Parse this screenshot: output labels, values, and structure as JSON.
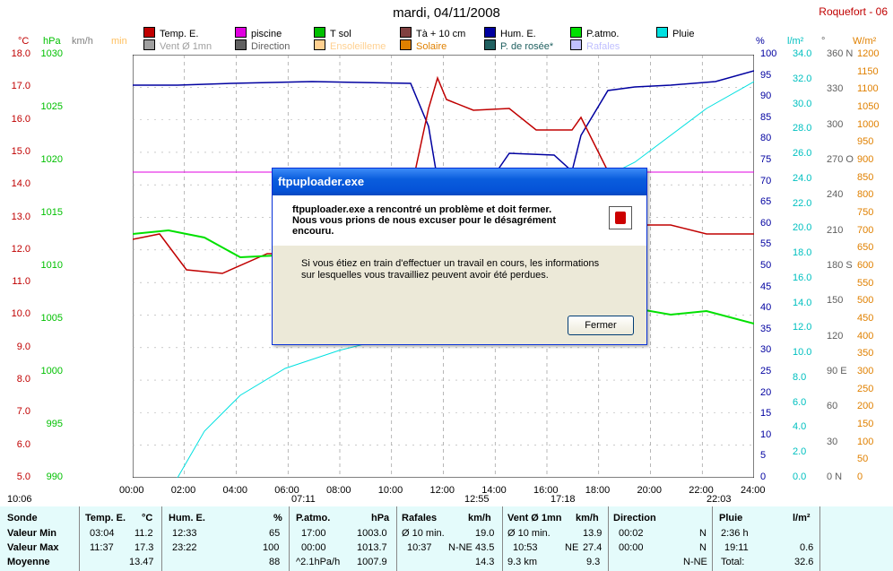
{
  "title": "mardi, 04/11/2008",
  "station": "Roquefort - 06",
  "legend": [
    {
      "label": "Temp. E.",
      "color": "#c00000"
    },
    {
      "label": "piscine",
      "color": "#e000e0"
    },
    {
      "label": "T sol",
      "color": "#00c000"
    },
    {
      "label": "Tà + 10 cm",
      "color": "#804040"
    },
    {
      "label": "Hum. E.",
      "color": "#0000a0"
    },
    {
      "label": "P.atmo.",
      "color": "#00e000"
    },
    {
      "label": "Pluie",
      "color": "#00e0e0"
    },
    {
      "label": "Vent Ø 1mn",
      "color": "#a0a0a0"
    },
    {
      "label": "Direction",
      "color": "#606060"
    },
    {
      "label": "Ensoleilleme",
      "color": "#ffd090"
    },
    {
      "label": "Solaire",
      "color": "#e08000"
    },
    {
      "label": "P. de rosée*",
      "color": "#206060"
    },
    {
      "label": "Rafales",
      "color": "#c0c0ff"
    }
  ],
  "units": {
    "c": "°C",
    "hpa": "hPa",
    "kmh": "km/h",
    "min": "min",
    "pct": "%",
    "lm2": "l/m²",
    "deg": "°",
    "wm2": "W/m²"
  },
  "axis_temp": [
    "18.0",
    "17.0",
    "16.0",
    "15.0",
    "14.0",
    "13.0",
    "12.0",
    "11.0",
    "10.0",
    "9.0",
    "8.0",
    "7.0",
    "6.0",
    "5.0"
  ],
  "axis_hpa": [
    "1030",
    "1025",
    "1020",
    "1015",
    "1010",
    "1005",
    "1000",
    "995",
    "990"
  ],
  "axis_hum": [
    "100",
    "95",
    "90",
    "85",
    "80",
    "75",
    "70",
    "65",
    "60",
    "55",
    "50",
    "45",
    "40",
    "35",
    "30",
    "25",
    "20",
    "15",
    "10",
    "5",
    "0"
  ],
  "axis_rain": [
    "34.0",
    "32.0",
    "30.0",
    "28.0",
    "26.0",
    "24.0",
    "22.0",
    "20.0",
    "18.0",
    "16.0",
    "14.0",
    "12.0",
    "10.0",
    "8.0",
    "6.0",
    "4.0",
    "2.0",
    "0.0"
  ],
  "axis_dir": [
    "360 N",
    "330",
    "300",
    "270 O",
    "240",
    "210",
    "180 S",
    "150",
    "120",
    "90 E",
    "60",
    "30",
    "0 N"
  ],
  "axis_sol": [
    "1200",
    "1150",
    "1100",
    "1050",
    "1000",
    "950",
    "900",
    "850",
    "800",
    "750",
    "700",
    "650",
    "600",
    "550",
    "500",
    "450",
    "400",
    "350",
    "300",
    "250",
    "200",
    "150",
    "100",
    "50",
    "0"
  ],
  "x_ticks": [
    "00:00",
    "02:00",
    "04:00",
    "06:00",
    "08:00",
    "10:00",
    "12:00",
    "14:00",
    "16:00",
    "18:00",
    "20:00",
    "22:00",
    "24:00"
  ],
  "sun": {
    "day_start": "10:06",
    "sunrise": "07:11",
    "noon": "12:55",
    "sunset": "17:18",
    "end": "22:03"
  },
  "dialog": {
    "title": "ftpuploader.exe",
    "heading": "ftpuploader.exe a rencontré un problème et doit fermer. Nous vous prions de nous excuser pour le désagrément encouru.",
    "message": "Si vous étiez en train d'effectuer un travail en cours, les informations sur lesquelles vous travailliez peuvent avoir été perdues.",
    "button": "Fermer"
  },
  "table": {
    "rows_labels": [
      "Sonde",
      "Valeur Min",
      "Valeur Max",
      "Moyenne"
    ],
    "temp": {
      "h": "Temp. E.",
      "u": "°C",
      "min_t": "03:04",
      "min": "11.2",
      "max_t": "11:37",
      "max": "17.3",
      "avg": "13.47"
    },
    "hum": {
      "h": "Hum. E.",
      "u": "%",
      "min_t": "12:33",
      "min": "65",
      "max_t": "23:22",
      "max": "100",
      "avg": "88"
    },
    "patmo": {
      "h": "P.atmo.",
      "u": "hPa",
      "min_t": "17:00",
      "min": "1003.0",
      "max_t": "00:00",
      "max": "1013.7",
      "trend": "^2.1hPa/h",
      "avg": "1007.9"
    },
    "raf": {
      "h": "Rafales",
      "u": "km/h",
      "min_t": "Ø 10 min.",
      "min": "19.0",
      "max_t": "10:37",
      "max_d": "N-NE",
      "max": "43.5",
      "avg": "14.3"
    },
    "vent": {
      "h": "Vent Ø 1mn",
      "u": "km/h",
      "min_t": "Ø 10 min.",
      "min": "13.9",
      "max_t": "10:53",
      "max_d": "NE",
      "max": "27.4",
      "dist": "9.3 km",
      "avg": "9.3"
    },
    "dir": {
      "h": "Direction",
      "min_t": "00:02",
      "min": "N",
      "max_t": "00:00",
      "max": "N",
      "avg": "N-NE"
    },
    "pluie": {
      "h": "Pluie",
      "u": "l/m²",
      "min_t": "2:36 h",
      "max_t": "19:11",
      "max": "0.6",
      "avg_l": "Total:",
      "avg": "32.6"
    }
  }
}
